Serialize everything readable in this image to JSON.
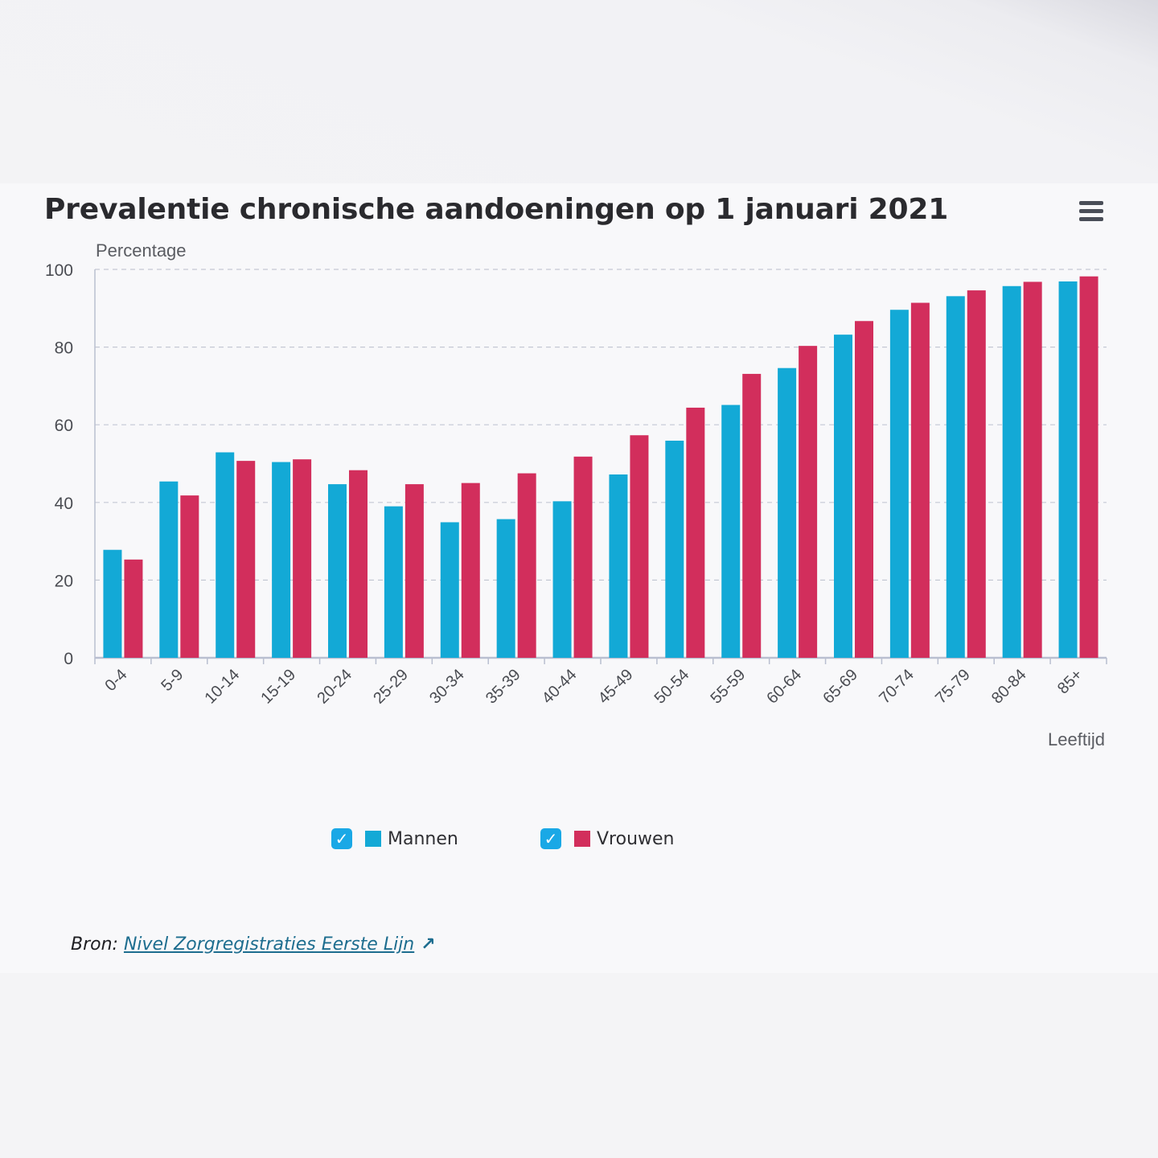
{
  "title": "Prevalentie chronische aandoeningen op 1 januari 2021",
  "menu_icon": "hamburger-menu-icon",
  "colors": {
    "mannen": "#13a9d6",
    "vrouwen": "#d22e5c",
    "grid": "#c4c8d4",
    "axis": "#b9bfd0",
    "text": "#4a4c52"
  },
  "legend": [
    {
      "label": "Mannen",
      "checked": true,
      "check_glyph": "✓"
    },
    {
      "label": "Vrouwen",
      "checked": true,
      "check_glyph": "✓"
    }
  ],
  "source": {
    "prefix": "Bron:",
    "link_text": "Nivel Zorgregistraties Eerste Lijn",
    "link_icon": "↗"
  },
  "chart_data": {
    "type": "bar",
    "title": "Prevalentie chronische aandoeningen op 1 januari 2021",
    "ylabel": "Percentage",
    "xlabel": "Leeftijd",
    "ylim": [
      0,
      100
    ],
    "yticks": [
      0,
      20,
      40,
      60,
      80,
      100
    ],
    "grid": true,
    "legend_position": "bottom",
    "categories": [
      "0-4",
      "5-9",
      "10-14",
      "15-19",
      "20-24",
      "25-29",
      "30-34",
      "35-39",
      "40-44",
      "45-49",
      "50-54",
      "55-59",
      "60-64",
      "65-69",
      "70-74",
      "75-79",
      "80-84",
      "85+"
    ],
    "series": [
      {
        "name": "Mannen",
        "values": [
          27.8,
          45.4,
          52.9,
          50.4,
          44.7,
          39.0,
          34.9,
          35.7,
          40.3,
          47.2,
          55.9,
          65.1,
          74.6,
          83.2,
          89.6,
          93.1,
          95.7,
          96.9
        ]
      },
      {
        "name": "Vrouwen",
        "values": [
          25.3,
          41.8,
          50.7,
          51.1,
          48.3,
          44.7,
          45.0,
          47.5,
          51.8,
          57.3,
          64.4,
          73.1,
          80.3,
          86.7,
          91.4,
          94.6,
          96.8,
          98.2
        ]
      }
    ]
  }
}
